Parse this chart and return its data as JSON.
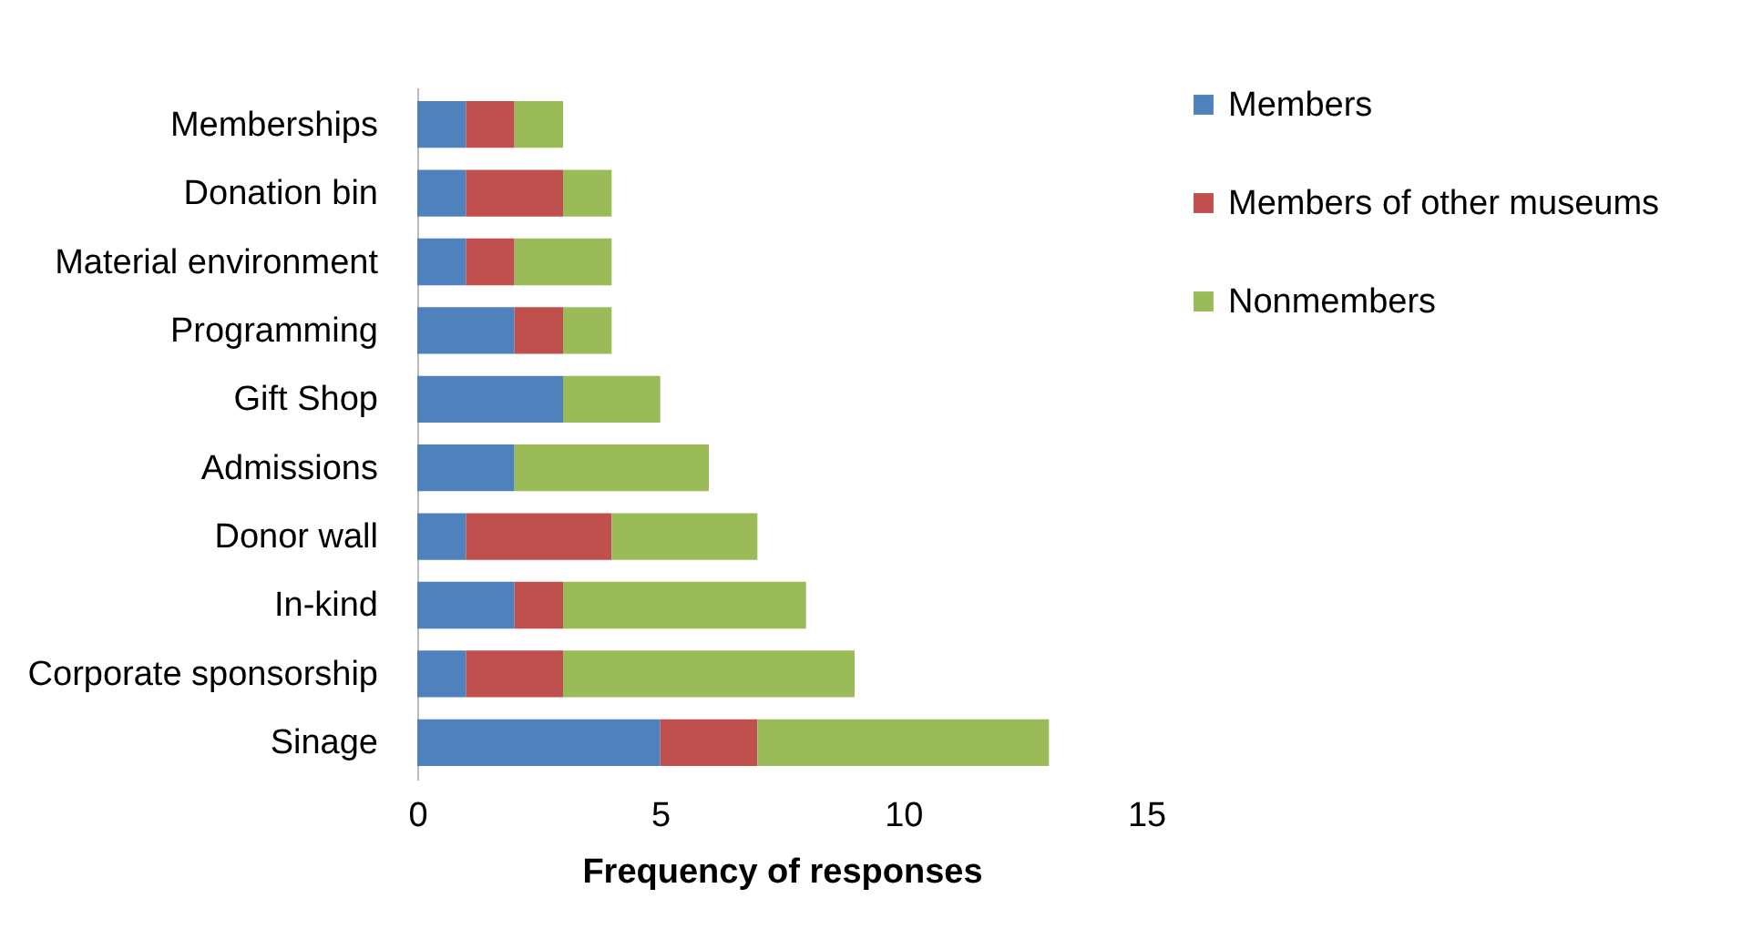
{
  "chart_data": {
    "type": "bar",
    "orientation": "horizontal",
    "stacked": true,
    "xlabel": "Frequency of responses",
    "categories": [
      "Memberships",
      "Donation bin",
      "Material environment",
      "Programming",
      "Gift Shop",
      "Admissions",
      "Donor wall",
      "In-kind",
      "Corporate sponsorship",
      "Sinage"
    ],
    "series": [
      {
        "name": "Members",
        "color": "#4f81bd",
        "values": [
          1,
          1,
          1,
          2,
          3,
          2,
          1,
          2,
          1,
          5
        ]
      },
      {
        "name": "Members of other museums",
        "color": "#c0504d",
        "values": [
          1,
          2,
          1,
          1,
          0,
          0,
          3,
          1,
          2,
          2
        ]
      },
      {
        "name": "Nonmembers",
        "color": "#9bbb59",
        "values": [
          1,
          1,
          2,
          1,
          2,
          4,
          3,
          5,
          6,
          6
        ]
      }
    ],
    "xlim": [
      0,
      15
    ],
    "xticks": [
      0,
      5,
      10,
      15
    ],
    "grid": false,
    "legend": "right"
  }
}
